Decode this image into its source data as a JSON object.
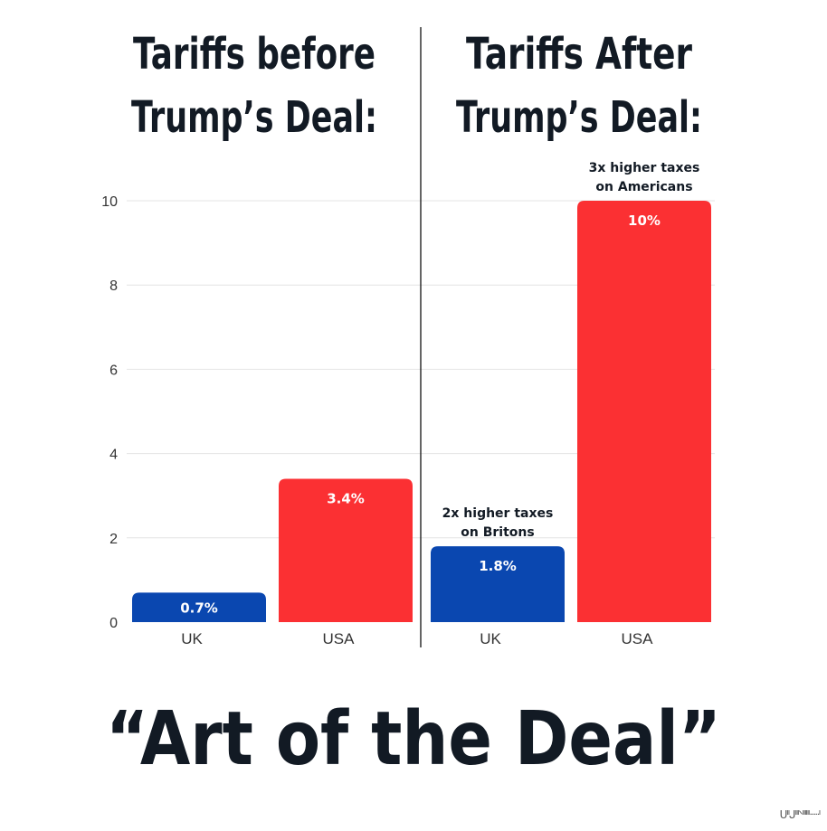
{
  "chart_data": {
    "type": "bar",
    "ylim": [
      0,
      10
    ],
    "yticks": [
      0,
      2,
      4,
      6,
      8,
      10
    ],
    "grid": true,
    "title": "“Art of the Deal”",
    "panels": [
      {
        "title_line1": "Tariffs before",
        "title_line2": "Trump’s Deal:",
        "categories": [
          "UK",
          "USA"
        ],
        "values": [
          0.7,
          3.4
        ],
        "value_labels": [
          "0.7%",
          "3.4%"
        ],
        "annotations": []
      },
      {
        "title_line1": "Tariffs After",
        "title_line2": "Trump’s Deal:",
        "categories": [
          "UK",
          "USA"
        ],
        "values": [
          1.8,
          10
        ],
        "value_labels": [
          "1.8%",
          "10%"
        ],
        "annotations": [
          [
            "2x higher taxes",
            "on Britons"
          ],
          [
            "3x higher taxes",
            "on Americans"
          ]
        ]
      }
    ],
    "bar_colors": {
      "UK": "#0a47b0",
      "USA": "#fb3033"
    }
  },
  "colors": {
    "uk": "#0a47b0",
    "usa": "#fb3033",
    "title_text": "#121a24",
    "axis_text": "#333333",
    "grid": "#e4e4e4",
    "divider": "#222222"
  },
  "watermark": "ᑌᑊᑊᒍᑊᑊᑊᐠᑊᑊᑊᑊᑊᑊᐧᐧᐧᐧᐧᑊ"
}
